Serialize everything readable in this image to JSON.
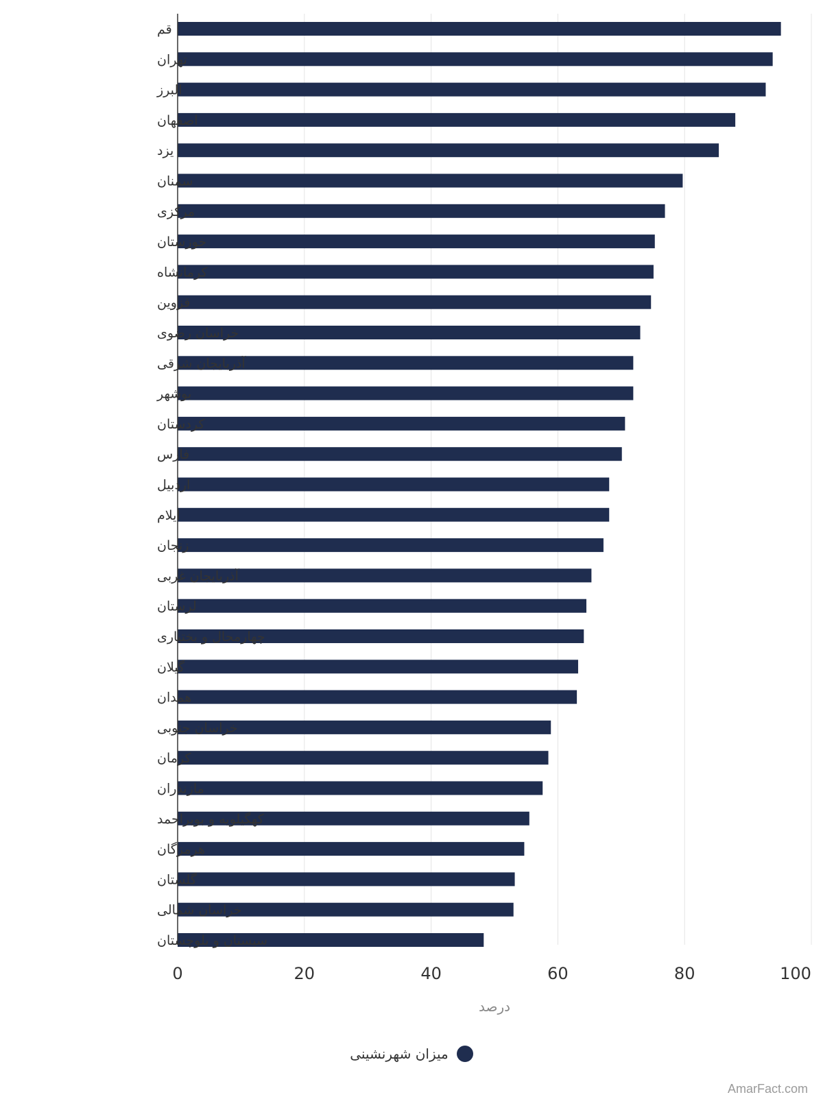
{
  "chart_data": {
    "type": "bar",
    "orientation": "horizontal",
    "title": "",
    "xlabel": "درصد",
    "ylabel": "",
    "xlim": [
      0,
      100
    ],
    "x_ticks": [
      0,
      20,
      40,
      60,
      80,
      100
    ],
    "grid": true,
    "legend_position": "bottom-center",
    "categories": [
      "قم",
      "تهران",
      "البرز",
      "اصفهان",
      "یزد",
      "سمنان",
      "مرکزی",
      "خوزستان",
      "کرمانشاه",
      "قزوین",
      "خراسان رضوی",
      "آذربایجان شرقی",
      "بوشهر",
      "کردستان",
      "فارس",
      "اردبیل",
      "ایلام",
      "زنجان",
      "آذربایجان غربی",
      "لرستان",
      "چهارمحال و بختیاری",
      "گیلان",
      "همدان",
      "خراسان جنوبی",
      "کرمان",
      "مازندران",
      "کهگیلویه و بویراحمد",
      "هرمزگان",
      "گلستان",
      "خراسان شمالی",
      "سیستان و بلوچستان"
    ],
    "series": [
      {
        "name": "میزان شهرنشینی",
        "color": "#1f2d4f",
        "values": [
          95.2,
          93.9,
          92.8,
          88.0,
          85.4,
          79.7,
          76.9,
          75.3,
          75.1,
          74.7,
          73.0,
          71.9,
          71.9,
          70.6,
          70.1,
          68.1,
          68.1,
          67.2,
          65.3,
          64.5,
          64.1,
          63.2,
          63.0,
          58.9,
          58.5,
          57.6,
          55.5,
          54.7,
          53.2,
          53.0,
          48.3
        ]
      }
    ]
  },
  "watermark": "AmarFact.com"
}
